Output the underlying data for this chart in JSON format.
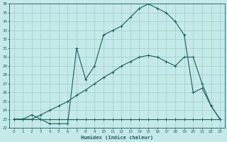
{
  "xlabel": "Humidex (Indice chaleur)",
  "xlim": [
    -0.5,
    23.5
  ],
  "ylim": [
    22,
    36
  ],
  "yticks": [
    22,
    23,
    24,
    25,
    26,
    27,
    28,
    29,
    30,
    31,
    32,
    33,
    34,
    35,
    36
  ],
  "xticks": [
    0,
    1,
    2,
    3,
    4,
    5,
    6,
    7,
    8,
    9,
    10,
    11,
    12,
    13,
    14,
    15,
    16,
    17,
    18,
    19,
    20,
    21,
    22,
    23
  ],
  "bg_color": "#c5e8e8",
  "grid_color": "#9ecece",
  "line_color": "#1c5c5c",
  "line1_x": [
    0,
    1,
    2,
    3,
    4,
    5,
    6,
    7,
    8,
    9,
    10,
    11,
    12,
    13,
    14,
    15,
    16,
    17,
    18,
    19,
    20,
    21,
    22,
    23
  ],
  "line1_y": [
    23,
    23,
    23,
    23,
    23,
    23,
    23,
    23,
    23,
    23,
    23,
    23,
    23,
    23,
    23,
    23,
    23,
    23,
    23,
    23,
    23,
    23,
    23,
    23
  ],
  "line2_x": [
    0,
    1,
    2,
    3,
    4,
    5,
    6,
    7,
    8,
    9,
    10,
    11,
    12,
    13,
    14,
    15,
    16,
    17,
    18,
    19,
    20,
    21,
    22,
    23
  ],
  "line2_y": [
    23.0,
    23.0,
    23.0,
    23.5,
    24.0,
    24.5,
    25.0,
    25.7,
    26.3,
    27.0,
    27.7,
    28.3,
    29.0,
    29.5,
    30.0,
    30.2,
    30.0,
    29.5,
    29.0,
    30.0,
    30.0,
    27.0,
    24.5,
    23.0
  ],
  "line3_x": [
    0,
    1,
    2,
    3,
    4,
    5,
    6,
    7,
    8,
    9,
    10,
    11,
    12,
    13,
    14,
    15,
    16,
    17,
    18,
    19,
    20,
    21,
    22,
    23
  ],
  "line3_y": [
    23.0,
    23.0,
    23.5,
    23.0,
    22.5,
    22.5,
    22.5,
    31.0,
    27.5,
    29.0,
    32.5,
    33.0,
    33.5,
    34.5,
    35.5,
    36.0,
    35.5,
    35.0,
    34.0,
    32.5,
    26.0,
    26.5,
    24.5,
    23.0
  ]
}
